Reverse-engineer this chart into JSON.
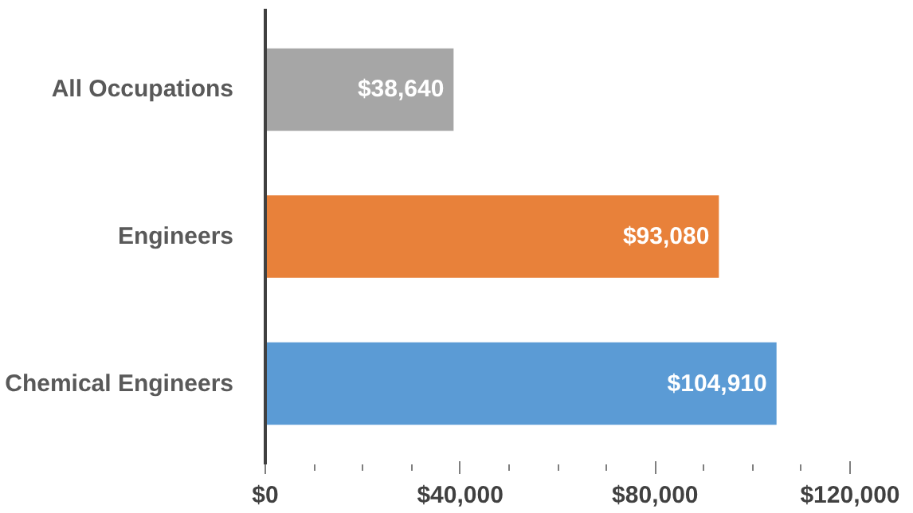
{
  "chart_data": {
    "type": "bar",
    "orientation": "horizontal",
    "categories": [
      "All Occupations",
      "Engineers",
      "Chemical Engineers"
    ],
    "values": [
      38640,
      93080,
      104910
    ],
    "colors": [
      "#a6a6a6",
      "#e8813a",
      "#5b9bd5"
    ],
    "value_labels": [
      "$38,640",
      "$93,080",
      "$104,910"
    ],
    "xlim": [
      0,
      120000
    ],
    "xticks": [
      {
        "value": 0,
        "label": "$0"
      },
      {
        "value": 40000,
        "label": "$40,000"
      },
      {
        "value": 80000,
        "label": "$80,000"
      },
      {
        "value": 120000,
        "label": "$120,000"
      }
    ],
    "grid": false
  }
}
